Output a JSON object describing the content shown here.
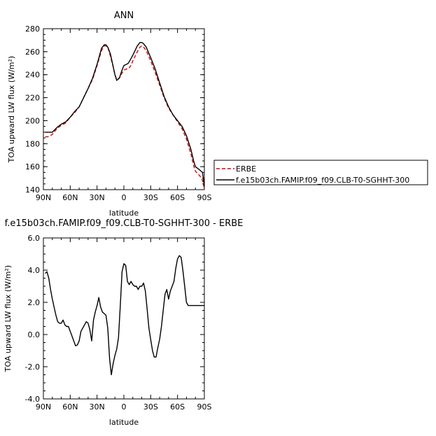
{
  "chart_data": [
    {
      "type": "line",
      "title": "ANN",
      "xlabel": "latitude",
      "ylabel": "TOA upward LW flux (W/m²)",
      "xlim": [
        90,
        -90
      ],
      "ylim": [
        140,
        280
      ],
      "xticks": [
        90,
        60,
        30,
        0,
        -30,
        -60,
        -90
      ],
      "xticklabels": [
        "90N",
        "60N",
        "30N",
        "0",
        "30S",
        "60S",
        "90S"
      ],
      "yticks": [
        140,
        160,
        180,
        200,
        220,
        240,
        260,
        280
      ],
      "yticklabels": [
        "140",
        "160",
        "180",
        "200",
        "220",
        "240",
        "260",
        "280"
      ],
      "legend": "right",
      "series": [
        {
          "name": "ERBE",
          "color": "#dd0000",
          "dash": "dashed",
          "x": [
            88,
            85,
            80,
            75,
            70,
            65,
            60,
            55,
            50,
            45,
            40,
            35,
            30,
            25,
            22,
            20,
            18,
            15,
            12,
            10,
            8,
            5,
            3,
            0,
            -3,
            -5,
            -8,
            -10,
            -15,
            -18,
            -20,
            -22,
            -25,
            -30,
            -35,
            -40,
            -45,
            -50,
            -55,
            -60,
            -65,
            -70,
            -75,
            -78,
            -80,
            -85,
            -88,
            -90
          ],
          "y": [
            186,
            186,
            188,
            193,
            196,
            198,
            203,
            207,
            212,
            220,
            228,
            236,
            248,
            261,
            265,
            265,
            264,
            256,
            247,
            240,
            236,
            237,
            240,
            244,
            245,
            245,
            248,
            252,
            260,
            264,
            265,
            264,
            261,
            252,
            242,
            231,
            220,
            211,
            205,
            199,
            193,
            184,
            171,
            161,
            156,
            152,
            148,
            141
          ]
        },
        {
          "name": "f.e15b03ch.FAMIP.f09_f09.CLB-T0-SGHHT-300",
          "color": "#000000",
          "dash": "solid",
          "x": [
            88,
            85,
            80,
            75,
            70,
            65,
            60,
            55,
            50,
            45,
            40,
            35,
            30,
            25,
            22,
            20,
            18,
            15,
            12,
            10,
            8,
            5,
            3,
            0,
            -3,
            -5,
            -8,
            -10,
            -15,
            -18,
            -20,
            -22,
            -25,
            -30,
            -35,
            -40,
            -45,
            -50,
            -55,
            -60,
            -65,
            -70,
            -75,
            -78,
            -80,
            -85,
            -88,
            -90
          ],
          "y": [
            190,
            190,
            190,
            194,
            197,
            199,
            203,
            208,
            212,
            220,
            228,
            237,
            249,
            263,
            266,
            266,
            264,
            258,
            247,
            240,
            235,
            237,
            242,
            248,
            249,
            250,
            254,
            257,
            265,
            268,
            268,
            267,
            264,
            255,
            245,
            233,
            221,
            212,
            205,
            200,
            195,
            187,
            175,
            165,
            160,
            157,
            155,
            143
          ]
        }
      ]
    },
    {
      "type": "line",
      "title": "f.e15b03ch.FAMIP.f09_f09.CLB-T0-SGHHT-300 - ERBE",
      "xlabel": "latitude",
      "ylabel": "TOA upward LW flux (W/m²)",
      "xlim": [
        90,
        -90
      ],
      "ylim": [
        -4,
        6
      ],
      "xticks": [
        90,
        60,
        30,
        0,
        -30,
        -60,
        -90
      ],
      "xticklabels": [
        "90N",
        "60N",
        "30N",
        "0",
        "30S",
        "60S",
        "90S"
      ],
      "yticks": [
        -4,
        -2,
        0,
        2,
        4,
        6
      ],
      "yticklabels": [
        "-4.0",
        "-2.0",
        "0.0",
        "2.0",
        "4.0",
        "6.0"
      ],
      "series": [
        {
          "color": "#000000",
          "dash": "solid",
          "x": [
            88,
            86,
            84,
            82,
            80,
            78,
            76,
            74,
            72,
            70,
            68,
            66,
            64,
            62,
            60,
            58,
            56,
            54,
            52,
            50,
            48,
            46,
            44,
            42,
            40,
            38,
            36,
            34,
            32,
            30,
            28,
            26,
            24,
            22,
            20,
            18,
            16,
            14,
            12,
            10,
            8,
            6,
            4,
            2,
            0,
            -2,
            -4,
            -6,
            -8,
            -10,
            -12,
            -14,
            -16,
            -18,
            -20,
            -22,
            -24,
            -26,
            -28,
            -30,
            -32,
            -34,
            -36,
            -38,
            -40,
            -42,
            -44,
            -46,
            -48,
            -50,
            -52,
            -54,
            -56,
            -58,
            -60,
            -62,
            -64,
            -66,
            -68,
            -70,
            -72,
            -74,
            -76,
            -78,
            -80,
            -82,
            -84,
            -86,
            -88,
            -90
          ],
          "y": [
            3.8,
            3.9,
            3.5,
            2.8,
            2.2,
            1.7,
            1.2,
            0.8,
            0.7,
            0.7,
            0.9,
            0.6,
            0.5,
            0.5,
            0.2,
            -0.1,
            -0.4,
            -0.7,
            -0.65,
            -0.4,
            0.2,
            0.4,
            0.6,
            0.8,
            0.7,
            0.3,
            -0.4,
            0.9,
            1.4,
            1.8,
            2.3,
            1.7,
            1.4,
            1.3,
            1.2,
            0.4,
            -1.5,
            -2.5,
            -1.8,
            -1.3,
            -0.9,
            -0.2,
            1.8,
            3.9,
            4.4,
            4.3,
            3.3,
            3.1,
            3.3,
            3.1,
            3.0,
            3.0,
            2.8,
            3.0,
            3.0,
            3.2,
            2.7,
            1.6,
            0.4,
            -0.3,
            -1.0,
            -1.4,
            -1.4,
            -0.8,
            -0.3,
            0.5,
            1.5,
            2.5,
            2.8,
            2.2,
            2.7,
            3.0,
            3.3,
            4.1,
            4.7,
            4.9,
            4.8,
            4.0,
            3.0,
            2.0,
            1.8,
            1.8,
            1.8,
            1.8,
            1.8,
            1.8,
            1.8,
            1.8,
            1.8,
            1.8
          ]
        }
      ]
    }
  ]
}
